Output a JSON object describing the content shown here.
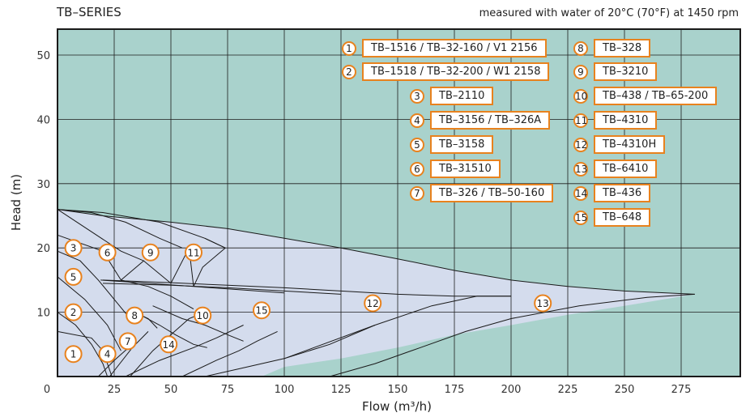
{
  "header": {
    "title": "TB–SERIES",
    "note": "measured with water of 20°C (70°F) at 1450 rpm"
  },
  "colors": {
    "plot_bg": "#a9d2cc",
    "region_fill": "#d4dced",
    "border": "#1a1a1a",
    "accent": "#e8821e"
  },
  "chart_data": {
    "type": "area",
    "xlabel": "Flow (m³/h)",
    "ylabel": "Head (m)",
    "xlim": [
      0,
      300
    ],
    "ylim": [
      0,
      54
    ],
    "x_ticks": [
      0,
      25,
      50,
      75,
      100,
      125,
      150,
      175,
      200,
      225,
      250,
      275
    ],
    "y_ticks": [
      10,
      20,
      30,
      40,
      50
    ],
    "grid": true,
    "legend": [
      {
        "id": "1",
        "label": "TB–1516 / TB–32-160 / V1 2156"
      },
      {
        "id": "2",
        "label": "TB–1518 / TB–32-200 / W1 2158"
      },
      {
        "id": "3",
        "label": "TB–2110"
      },
      {
        "id": "4",
        "label": "TB–3156 / TB–326A"
      },
      {
        "id": "5",
        "label": "TB–3158"
      },
      {
        "id": "6",
        "label": "TB–31510"
      },
      {
        "id": "7",
        "label": "TB–326 / TB–50-160"
      },
      {
        "id": "8",
        "label": "TB–328"
      },
      {
        "id": "9",
        "label": "TB–3210"
      },
      {
        "id": "10",
        "label": "TB–438 / TB–65-200"
      },
      {
        "id": "11",
        "label": "TB–4310"
      },
      {
        "id": "12",
        "label": "TB–4310H"
      },
      {
        "id": "13",
        "label": "TB–6410"
      },
      {
        "id": "14",
        "label": "TB–436"
      },
      {
        "id": "15",
        "label": "TB–648"
      }
    ],
    "envelope": [
      [
        0,
        26
      ],
      [
        20,
        25
      ],
      [
        50,
        24
      ],
      [
        75,
        23
      ],
      [
        100,
        21.5
      ],
      [
        125,
        20
      ],
      [
        150,
        18.3
      ],
      [
        175,
        16.5
      ],
      [
        200,
        15
      ],
      [
        225,
        14
      ],
      [
        250,
        13.3
      ],
      [
        281,
        12.8
      ],
      [
        250,
        11
      ],
      [
        225,
        9.6
      ],
      [
        200,
        8
      ],
      [
        175,
        6.5
      ],
      [
        150,
        4.5
      ],
      [
        125,
        2.8
      ],
      [
        100,
        1.5
      ],
      [
        90,
        0
      ],
      [
        0,
        0
      ]
    ],
    "curves": [
      {
        "points": [
          [
            0,
            26
          ],
          [
            20,
            25
          ],
          [
            50,
            24
          ],
          [
            75,
            23
          ],
          [
            100,
            21.5
          ],
          [
            125,
            20
          ],
          [
            150,
            18.3
          ],
          [
            175,
            16.5
          ],
          [
            200,
            15
          ],
          [
            225,
            14
          ],
          [
            250,
            13.3
          ],
          [
            281,
            12.8
          ]
        ]
      },
      {
        "points": [
          [
            0,
            26
          ],
          [
            28,
            19.5
          ],
          [
            38,
            18
          ],
          [
            28,
            15
          ]
        ]
      },
      {
        "points": [
          [
            0,
            26
          ],
          [
            15,
            25.5
          ],
          [
            30,
            24
          ],
          [
            45,
            21.5
          ],
          [
            55,
            20
          ]
        ]
      },
      {
        "points": [
          [
            0,
            26
          ],
          [
            20,
            25.5
          ],
          [
            45,
            24
          ],
          [
            65,
            21.5
          ],
          [
            74,
            20
          ]
        ]
      },
      {
        "points": [
          [
            0,
            22
          ],
          [
            20,
            19.5
          ],
          [
            28,
            15
          ]
        ]
      },
      {
        "points": [
          [
            38,
            18
          ],
          [
            50,
            14.5
          ],
          [
            58,
            20
          ]
        ]
      },
      {
        "points": [
          [
            58,
            20
          ],
          [
            60,
            14
          ]
        ]
      },
      {
        "points": [
          [
            65,
            21.5
          ],
          [
            74,
            20
          ],
          [
            64,
            17
          ],
          [
            60,
            14
          ]
        ]
      },
      {
        "points": [
          [
            19,
            15
          ],
          [
            40,
            14.5
          ],
          [
            60,
            14
          ],
          [
            80,
            13.5
          ],
          [
            100,
            13
          ]
        ]
      },
      {
        "points": [
          [
            20,
            14.5
          ],
          [
            50,
            14.2
          ],
          [
            75,
            13.8
          ],
          [
            100,
            13.3
          ],
          [
            125,
            12.8
          ]
        ]
      },
      {
        "points": [
          [
            20,
            15
          ],
          [
            50,
            14.6
          ],
          [
            75,
            14.2
          ],
          [
            100,
            13.8
          ],
          [
            125,
            13.3
          ],
          [
            150,
            12.8
          ],
          [
            175,
            12.5
          ],
          [
            200,
            12.5
          ]
        ]
      },
      {
        "points": [
          [
            28,
            15
          ],
          [
            40,
            14
          ],
          [
            50,
            12.5
          ],
          [
            60,
            10.5
          ]
        ]
      },
      {
        "points": [
          [
            0,
            19.5
          ],
          [
            10,
            18
          ],
          [
            18,
            15
          ],
          [
            25,
            12
          ],
          [
            32,
            9
          ]
        ]
      },
      {
        "points": [
          [
            0,
            15.5
          ],
          [
            12,
            12
          ],
          [
            22,
            8
          ],
          [
            28,
            4
          ]
        ]
      },
      {
        "points": [
          [
            0,
            10
          ],
          [
            8,
            8
          ],
          [
            15,
            5
          ],
          [
            20,
            2
          ],
          [
            22,
            0
          ]
        ]
      },
      {
        "points": [
          [
            0,
            7
          ],
          [
            15,
            6
          ],
          [
            20,
            4
          ],
          [
            24,
            0
          ]
        ]
      },
      {
        "points": [
          [
            18,
            0
          ],
          [
            25,
            2.5
          ],
          [
            33,
            5
          ]
        ]
      },
      {
        "points": [
          [
            23,
            0
          ],
          [
            33,
            4.5
          ],
          [
            40,
            7
          ]
        ]
      },
      {
        "points": [
          [
            32,
            0
          ],
          [
            42,
            4
          ],
          [
            50,
            6.5
          ],
          [
            58,
            9
          ],
          [
            65,
            10
          ]
        ]
      },
      {
        "points": [
          [
            30,
            0
          ],
          [
            45,
            2.5
          ],
          [
            60,
            4.5
          ],
          [
            70,
            6
          ],
          [
            82,
            8
          ]
        ]
      },
      {
        "points": [
          [
            32,
            10
          ],
          [
            37,
            9.5
          ],
          [
            45,
            8
          ],
          [
            52,
            6.5
          ],
          [
            60,
            5
          ],
          [
            66,
            4.5
          ]
        ]
      },
      {
        "points": [
          [
            37,
            9.5
          ],
          [
            40,
            9
          ],
          [
            44,
            7.5
          ]
        ]
      },
      {
        "points": [
          [
            42,
            11
          ],
          [
            55,
            9
          ],
          [
            65,
            8
          ],
          [
            75,
            6.5
          ],
          [
            82,
            5.5
          ]
        ]
      },
      {
        "points": [
          [
            55,
            0
          ],
          [
            70,
            2.5
          ],
          [
            80,
            4
          ],
          [
            88,
            5.5
          ],
          [
            97,
            7
          ]
        ]
      },
      {
        "points": [
          [
            65,
            0
          ],
          [
            80,
            1.2
          ],
          [
            100,
            2.8
          ],
          [
            120,
            5
          ],
          [
            140,
            8
          ]
        ]
      },
      {
        "points": [
          [
            100,
            2.8
          ],
          [
            140,
            8
          ],
          [
            165,
            11
          ],
          [
            185,
            12.5
          ],
          [
            200,
            12.5
          ]
        ]
      },
      {
        "points": [
          [
            120,
            0
          ],
          [
            140,
            2
          ],
          [
            160,
            4.5
          ],
          [
            180,
            7
          ],
          [
            200,
            9
          ],
          [
            230,
            11
          ],
          [
            260,
            12.3
          ],
          [
            281,
            12.8
          ]
        ]
      }
    ],
    "markers": [
      {
        "id": "1",
        "x": 7,
        "y": 3.5
      },
      {
        "id": "2",
        "x": 7,
        "y": 10
      },
      {
        "id": "3",
        "x": 7,
        "y": 20
      },
      {
        "id": "4",
        "x": 22,
        "y": 3.5
      },
      {
        "id": "5",
        "x": 7,
        "y": 15.5
      },
      {
        "id": "6",
        "x": 22,
        "y": 19.3
      },
      {
        "id": "7",
        "x": 31,
        "y": 5.5
      },
      {
        "id": "8",
        "x": 34,
        "y": 9.5
      },
      {
        "id": "9",
        "x": 41,
        "y": 19.3
      },
      {
        "id": "10",
        "x": 64,
        "y": 9.5
      },
      {
        "id": "11",
        "x": 60,
        "y": 19.3
      },
      {
        "id": "12",
        "x": 139,
        "y": 11.4
      },
      {
        "id": "13",
        "x": 214,
        "y": 11.4
      },
      {
        "id": "14",
        "x": 49,
        "y": 5
      },
      {
        "id": "15",
        "x": 90,
        "y": 10.3
      }
    ]
  }
}
